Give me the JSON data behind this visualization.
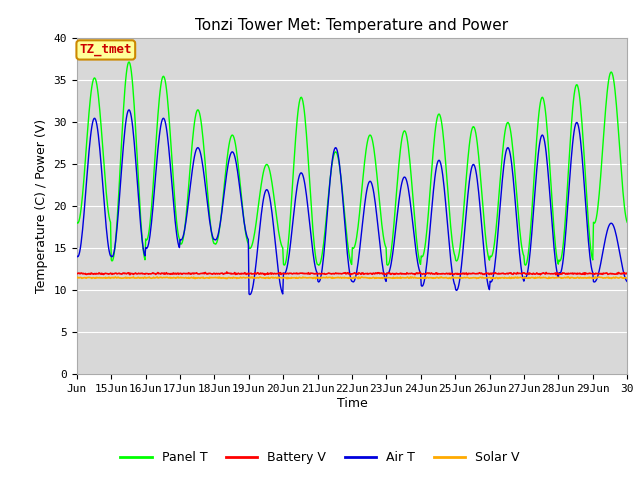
{
  "title": "Tonzi Tower Met: Temperature and Power",
  "xlabel": "Time",
  "ylabel": "Temperature (C) / Power (V)",
  "ylim": [
    0,
    40
  ],
  "yticks": [
    0,
    5,
    10,
    15,
    20,
    25,
    30,
    35,
    40
  ],
  "plot_bg": "#d8d8d8",
  "figure_bg": "#ffffff",
  "annotation_text": "TZ_tmet",
  "annotation_bg": "#ffff99",
  "annotation_border": "#cc8800",
  "annotation_color": "#cc0000",
  "legend_labels": [
    "Panel T",
    "Battery V",
    "Air T",
    "Solar V"
  ],
  "line_colors": {
    "panel_t": "#00ff00",
    "battery_v": "#ff0000",
    "air_t": "#0000dd",
    "solar_v": "#ffaa00"
  },
  "grid_color": "#ffffff",
  "x_day_labels": [
    "Jun",
    "15Jun",
    "16Jun",
    "17Jun",
    "18Jun",
    "19Jun",
    "20Jun",
    "21Jun",
    "22Jun",
    "23Jun",
    "24Jun",
    "25Jun",
    "26Jun",
    "27Jun",
    "28Jun",
    "29Jun",
    "30"
  ],
  "n_days": 16,
  "pts_per_day": 48,
  "panel_peaks": [
    35.3,
    37.2,
    35.5,
    31.5,
    28.5,
    25.0,
    33.0,
    26.5,
    28.5,
    29.0,
    31.0,
    29.5,
    30.0,
    33.0,
    34.5,
    36.0
  ],
  "panel_troughs": [
    18.0,
    13.5,
    16.0,
    15.5,
    15.5,
    15.0,
    13.0,
    13.0,
    15.0,
    13.0,
    14.0,
    13.5,
    14.0,
    13.0,
    13.5,
    18.0
  ],
  "air_peaks": [
    30.5,
    31.5,
    30.5,
    27.0,
    26.5,
    22.0,
    24.0,
    27.0,
    23.0,
    23.5,
    25.5,
    25.0,
    27.0,
    28.5,
    30.0,
    18.0
  ],
  "air_troughs": [
    14.0,
    14.0,
    15.0,
    16.0,
    16.0,
    9.5,
    12.0,
    11.0,
    11.0,
    12.0,
    10.5,
    10.0,
    11.0,
    11.5,
    12.0,
    11.0
  ],
  "battery_v_mean": 12.0,
  "solar_v_mean": 11.5,
  "title_fontsize": 11,
  "axis_label_fontsize": 9,
  "tick_fontsize": 8,
  "legend_fontsize": 9
}
